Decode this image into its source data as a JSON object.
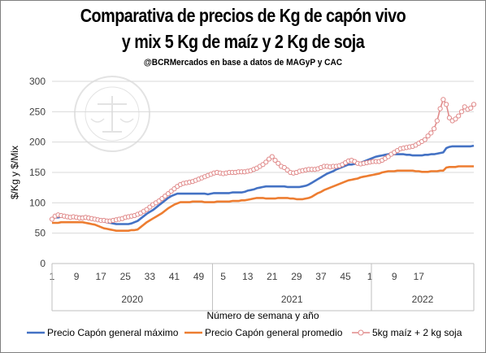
{
  "chart_data": {
    "type": "line",
    "title_line1": "Comparativa de precios de Kg de capón vivo",
    "title_line2": "y mix 5 Kg de maíz y 2 Kg de soja",
    "subtitle": "@BCRMercados en base a datos de MAGyP y CAC",
    "ylabel": "$/Kg y $/Mix",
    "xlabel": "Número de semana y año",
    "ylim": [
      0,
      300
    ],
    "yticks": [
      0,
      50,
      100,
      150,
      200,
      250,
      300
    ],
    "x_tick_labels": [
      "1",
      "9",
      "17",
      "25",
      "33",
      "41",
      "49",
      "5",
      "13",
      "21",
      "29",
      "37",
      "45",
      "1",
      "9",
      "17"
    ],
    "year_labels": [
      "2020",
      "2021",
      "2022"
    ],
    "grid": true,
    "legend_position": "bottom",
    "colors": {
      "max": "#4472c4",
      "prom": "#ed7d31",
      "mix": "#e08a8a"
    },
    "series": [
      {
        "name": "Precio Capón general máximo",
        "values": [
          75,
          76,
          76,
          77,
          77,
          77,
          77,
          77,
          77,
          77,
          77,
          76,
          76,
          75,
          73,
          71,
          70,
          69,
          68,
          67,
          66,
          65,
          65,
          65,
          65,
          65,
          66,
          68,
          70,
          74,
          78,
          82,
          85,
          88,
          92,
          96,
          100,
          104,
          108,
          111,
          113,
          115,
          115,
          115,
          115,
          115,
          115,
          115,
          115,
          115,
          115,
          114,
          115,
          116,
          116,
          116,
          116,
          116,
          116,
          117,
          117,
          117,
          117,
          118,
          120,
          121,
          122,
          124,
          125,
          126,
          127,
          127,
          127,
          127,
          127,
          127,
          127,
          126,
          126,
          126,
          126,
          126,
          127,
          128,
          130,
          133,
          136,
          139,
          142,
          145,
          148,
          150,
          152,
          155,
          157,
          159,
          161,
          163,
          163,
          164,
          165,
          166,
          168,
          170,
          172,
          174,
          176,
          177,
          178,
          179,
          180,
          180,
          180,
          180,
          180,
          180,
          179,
          179,
          178,
          178,
          178,
          178,
          179,
          179,
          180,
          180,
          181,
          182,
          183,
          190,
          192,
          193,
          193,
          193,
          193,
          193,
          193,
          193,
          194
        ]
      },
      {
        "name": "Precio Capón general promedio",
        "values": [
          67,
          67,
          67,
          68,
          68,
          68,
          68,
          68,
          68,
          68,
          68,
          67,
          66,
          65,
          64,
          62,
          60,
          58,
          57,
          56,
          55,
          54,
          54,
          54,
          54,
          54,
          55,
          55,
          56,
          60,
          64,
          68,
          71,
          74,
          77,
          80,
          83,
          87,
          91,
          94,
          97,
          99,
          101,
          101,
          101,
          101,
          102,
          102,
          102,
          102,
          101,
          101,
          101,
          101,
          102,
          102,
          102,
          102,
          102,
          103,
          103,
          103,
          104,
          104,
          105,
          106,
          107,
          108,
          108,
          108,
          107,
          107,
          107,
          107,
          108,
          108,
          108,
          108,
          107,
          107,
          106,
          106,
          106,
          107,
          108,
          110,
          113,
          116,
          118,
          121,
          123,
          125,
          127,
          129,
          131,
          133,
          135,
          137,
          138,
          139,
          140,
          142,
          143,
          144,
          145,
          146,
          147,
          148,
          150,
          151,
          152,
          152,
          152,
          153,
          153,
          153,
          153,
          153,
          153,
          152,
          152,
          151,
          151,
          151,
          152,
          152,
          152,
          153,
          153,
          158,
          159,
          159,
          159,
          160,
          160,
          160,
          160,
          160,
          160
        ]
      },
      {
        "name": "5kg maíz + 2 kg soja",
        "values": [
          73,
          78,
          80,
          79,
          78,
          77,
          76,
          77,
          76,
          75,
          75,
          76,
          75,
          74,
          73,
          72,
          71,
          71,
          70,
          70,
          71,
          72,
          73,
          74,
          76,
          77,
          78,
          79,
          81,
          83,
          86,
          89,
          93,
          97,
          100,
          103,
          107,
          111,
          115,
          119,
          123,
          127,
          130,
          132,
          133,
          134,
          135,
          137,
          139,
          141,
          143,
          145,
          147,
          149,
          150,
          149,
          148,
          149,
          150,
          150,
          150,
          151,
          151,
          151,
          152,
          153,
          155,
          157,
          160,
          163,
          167,
          172,
          176,
          170,
          165,
          160,
          158,
          154,
          150,
          149,
          150,
          152,
          153,
          154,
          155,
          155,
          155,
          156,
          158,
          160,
          160,
          159,
          160,
          160,
          161,
          163,
          166,
          169,
          170,
          168,
          165,
          164,
          165,
          166,
          167,
          168,
          168,
          168,
          170,
          173,
          176,
          180,
          183,
          186,
          189,
          190,
          191,
          192,
          193,
          195,
          198,
          201,
          204,
          210,
          215,
          222,
          235,
          255,
          270,
          262,
          240,
          235,
          238,
          243,
          250,
          258,
          254,
          256,
          262
        ]
      }
    ]
  },
  "watermark_text": "BOLSA DE COMERCIO DE ROSARIO"
}
